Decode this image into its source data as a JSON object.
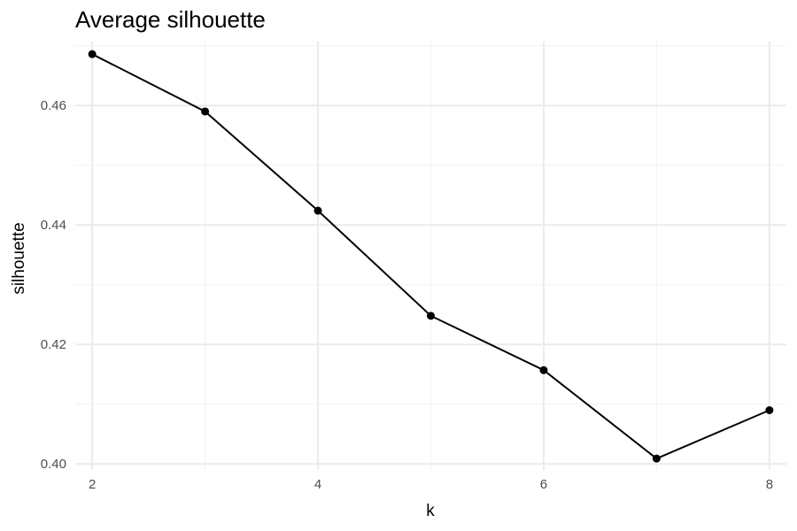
{
  "chart_data": {
    "type": "line",
    "title": "Average silhouette",
    "xlabel": "k",
    "ylabel": "silhouette",
    "x": [
      2,
      3,
      4,
      5,
      6,
      7,
      8
    ],
    "series": [
      {
        "values": [
          0.4686,
          0.459,
          0.4424,
          0.4248,
          0.4157,
          0.4009,
          0.409
        ]
      }
    ],
    "xlim": [
      1.85,
      8.15
    ],
    "ylim": [
      0.399,
      0.4707
    ],
    "x_ticks": [
      2,
      4,
      6,
      8
    ],
    "x_tick_labels": [
      "2",
      "4",
      "6",
      "8"
    ],
    "x_minor_ticks": [
      3,
      5,
      7
    ],
    "y_ticks": [
      0.4,
      0.42,
      0.44,
      0.46
    ],
    "y_tick_labels": [
      "0.40",
      "0.42",
      "0.44",
      "0.46"
    ],
    "y_minor_ticks": [
      0.41,
      0.43,
      0.45,
      0.47
    ],
    "grid": true,
    "line_color": "#000000",
    "point_color": "#000000",
    "grid_color": "#ebebeb"
  }
}
